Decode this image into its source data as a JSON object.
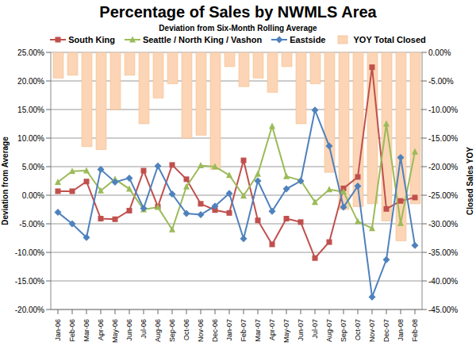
{
  "chart_data": {
    "type": "line",
    "title": "Percentage of Sales by NWMLS Area",
    "subtitle": "Deviation from Six-Month Rolling Average",
    "y_label": "Deviation from Average",
    "y2_label": "Closed Sales YOY",
    "categories": [
      "Jan-06",
      "Feb-06",
      "Mar-06",
      "Apr-06",
      "May-06",
      "Jun-06",
      "Jul-06",
      "Aug-06",
      "Sep-06",
      "Oct-06",
      "Nov-06",
      "Dec-06",
      "Jan-07",
      "Feb-07",
      "Mar-07",
      "Apr-07",
      "May-07",
      "Jun-07",
      "Jul-07",
      "Aug-07",
      "Sep-07",
      "Oct-07",
      "Nov-07",
      "Dec-07",
      "Jan-08",
      "Feb-08"
    ],
    "ylim": [
      -20,
      25
    ],
    "yticks": [
      {
        "value": -20,
        "label": "-20.00%"
      },
      {
        "value": -15,
        "label": "-15.00%"
      },
      {
        "value": -10,
        "label": "-10.00%"
      },
      {
        "value": -5,
        "label": "-5.00%"
      },
      {
        "value": 0,
        "label": "0.00%"
      },
      {
        "value": 5,
        "label": "5.00%"
      },
      {
        "value": 10,
        "label": "10.00%"
      },
      {
        "value": 15,
        "label": "15.00%"
      },
      {
        "value": 20,
        "label": "20.00%"
      },
      {
        "value": 25,
        "label": "25.00%"
      }
    ],
    "y2lim": [
      -45,
      0
    ],
    "y2ticks": [
      {
        "value": -45,
        "label": "-45.00%"
      },
      {
        "value": -40,
        "label": "-40.00%"
      },
      {
        "value": -35,
        "label": "-35.00%"
      },
      {
        "value": -30,
        "label": "-30.00%"
      },
      {
        "value": -25,
        "label": "-25.00%"
      },
      {
        "value": -20,
        "label": "-20.00%"
      },
      {
        "value": -15,
        "label": "-15.00%"
      },
      {
        "value": -10,
        "label": "-10.00%"
      },
      {
        "value": -5,
        "label": "-5.00%"
      },
      {
        "value": 0,
        "label": "0.00%"
      }
    ],
    "grid": true,
    "legend": "top",
    "series": [
      {
        "name": "South King",
        "type": "line",
        "color": "#c0504d",
        "marker": "square",
        "values": [
          0.7,
          0.7,
          2.4,
          -4.1,
          -4.2,
          -2.7,
          4.3,
          -2.0,
          5.3,
          2.8,
          -1.5,
          -2.6,
          -3.1,
          6.1,
          -4.4,
          -8.6,
          -4.1,
          -4.7,
          -11.0,
          -8.2,
          1.2,
          3.2,
          22.4,
          -2.4,
          -1.0,
          -0.4
        ]
      },
      {
        "name": "Seattle / North King / Vashon",
        "type": "line",
        "color": "#9bbb59",
        "marker": "triangle",
        "values": [
          2.3,
          4.2,
          4.3,
          0.8,
          2.8,
          1.1,
          -2.5,
          -2.1,
          -6.0,
          1.5,
          5.2,
          5.0,
          3.5,
          -0.1,
          3.7,
          12.1,
          3.3,
          2.6,
          -1.2,
          1.0,
          0.6,
          -4.6,
          -5.8,
          12.5,
          -4.9,
          7.6
        ]
      },
      {
        "name": "Eastside",
        "type": "line",
        "color": "#4f81bd",
        "marker": "diamond",
        "values": [
          -3.0,
          -5.0,
          -7.4,
          4.5,
          2.3,
          3.0,
          -2.3,
          5.1,
          0.2,
          -3.2,
          -3.4,
          -1.9,
          0.3,
          -7.6,
          2.5,
          -2.8,
          1.1,
          2.5,
          14.9,
          8.6,
          -2.1,
          1.6,
          -17.8,
          -11.3,
          6.6,
          -8.8
        ]
      },
      {
        "name": "YOY Total Closed",
        "type": "bar",
        "axis": "y2",
        "color": "#fbd5b5",
        "values": [
          -4.5,
          -4.0,
          -16.5,
          -17.0,
          -10.0,
          -4.0,
          -12.5,
          -8.0,
          -5.5,
          -15.0,
          -14.5,
          -20.5,
          -2.5,
          -6.0,
          -4.5,
          -7.0,
          -2.5,
          -12.5,
          -5.5,
          -21.0,
          -27.5,
          -27.0,
          -26.5,
          -29.5,
          -33.0,
          -26.5
        ]
      }
    ]
  }
}
